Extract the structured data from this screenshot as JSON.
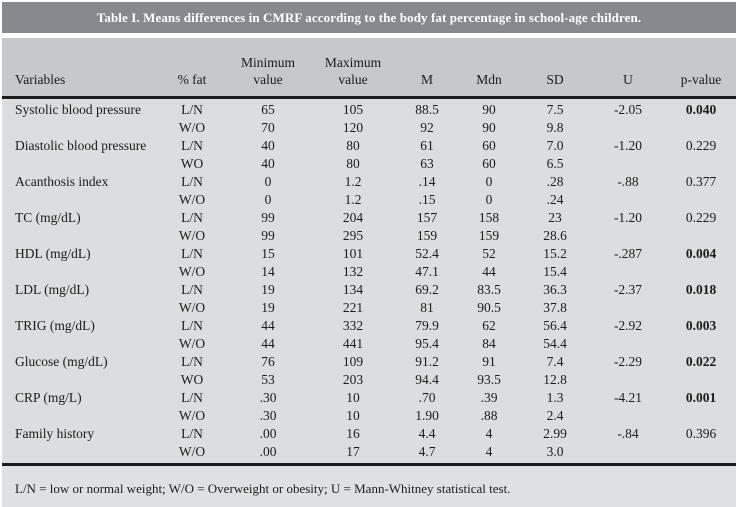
{
  "colors": {
    "title_bar_bg": "#87898C",
    "title_text": "#FFFFFF",
    "header_bg": "#C7C8CA",
    "body_bg": "#DCDDDE",
    "footnote_bg": "#DFE0E1",
    "rule": "#1C1C1C",
    "text": "#1B1B1B"
  },
  "table": {
    "title": "Table I. Means differences in CMRF according to the body fat percentage in school-age children.",
    "columns": [
      {
        "key": "variable",
        "label": "Variables"
      },
      {
        "key": "fat",
        "label": "% fat"
      },
      {
        "key": "min",
        "label": "Minimum\nvalue"
      },
      {
        "key": "max",
        "label": "Maximum\nvalue"
      },
      {
        "key": "m",
        "label": "M"
      },
      {
        "key": "mdn",
        "label": "Mdn"
      },
      {
        "key": "sd",
        "label": "SD"
      },
      {
        "key": "u",
        "label": "U"
      },
      {
        "key": "p",
        "label": "p-value"
      }
    ],
    "rows": [
      {
        "variable": "Systolic blood pressure",
        "fat": "L/N",
        "min": "65",
        "max": "105",
        "m": "88.5",
        "mdn": "90",
        "sd": "7.5",
        "u": "-2.05",
        "p": "0.040",
        "p_bold": true
      },
      {
        "variable": "",
        "fat": "W/O",
        "min": "70",
        "max": "120",
        "m": "92",
        "mdn": "90",
        "sd": "9.8",
        "u": "",
        "p": "",
        "p_bold": false
      },
      {
        "variable": "Diastolic blood pressure",
        "fat": "L/N",
        "min": "40",
        "max": "80",
        "m": "61",
        "mdn": "60",
        "sd": "7.0",
        "u": "-1.20",
        "p": "0.229",
        "p_bold": false
      },
      {
        "variable": "",
        "fat": "WO",
        "min": "40",
        "max": "80",
        "m": "63",
        "mdn": "60",
        "sd": "6.5",
        "u": "",
        "p": "",
        "p_bold": false
      },
      {
        "variable": "Acanthosis index",
        "fat": "L/N",
        "min": "0",
        "max": "1.2",
        "m": ".14",
        "mdn": "0",
        "sd": ".28",
        "u": "-.88",
        "p": "0.377",
        "p_bold": false
      },
      {
        "variable": "",
        "fat": "W/O",
        "min": "0",
        "max": "1.2",
        "m": ".15",
        "mdn": "0",
        "sd": ".24",
        "u": "",
        "p": "",
        "p_bold": false
      },
      {
        "variable": "TC (mg/dL)",
        "fat": "L/N",
        "min": "99",
        "max": "204",
        "m": "157",
        "mdn": "158",
        "sd": "23",
        "u": "-1.20",
        "p": "0.229",
        "p_bold": false
      },
      {
        "variable": "",
        "fat": "W/O",
        "min": "99",
        "max": "295",
        "m": "159",
        "mdn": "159",
        "sd": "28.6",
        "u": "",
        "p": "",
        "p_bold": false
      },
      {
        "variable": "HDL (mg/dL)",
        "fat": "L/N",
        "min": "15",
        "max": "101",
        "m": "52.4",
        "mdn": "52",
        "sd": "15.2",
        "u": "-.287",
        "p": "0.004",
        "p_bold": true
      },
      {
        "variable": "",
        "fat": "W/O",
        "min": "14",
        "max": "132",
        "m": "47.1",
        "mdn": "44",
        "sd": "15.4",
        "u": "",
        "p": "",
        "p_bold": false
      },
      {
        "variable": "LDL (mg/dL)",
        "fat": "L/N",
        "min": "19",
        "max": "134",
        "m": "69.2",
        "mdn": "83.5",
        "sd": "36.3",
        "u": "-2.37",
        "p": "0.018",
        "p_bold": true
      },
      {
        "variable": "",
        "fat": "W/O",
        "min": "19",
        "max": "221",
        "m": "81",
        "mdn": "90.5",
        "sd": "37.8",
        "u": "",
        "p": "",
        "p_bold": false
      },
      {
        "variable": "TRIG (mg/dL)",
        "fat": "L/N",
        "min": "44",
        "max": "332",
        "m": "79.9",
        "mdn": "62",
        "sd": "56.4",
        "u": "-2.92",
        "p": "0.003",
        "p_bold": true
      },
      {
        "variable": "",
        "fat": "W/O",
        "min": "44",
        "max": "441",
        "m": "95.4",
        "mdn": "84",
        "sd": "54.4",
        "u": "",
        "p": "",
        "p_bold": false
      },
      {
        "variable": "Glucose (mg/dL)",
        "fat": "L/N",
        "min": "76",
        "max": "109",
        "m": "91.2",
        "mdn": "91",
        "sd": "7.4",
        "u": "-2.29",
        "p": "0.022",
        "p_bold": true
      },
      {
        "variable": "",
        "fat": "WO",
        "min": "53",
        "max": "203",
        "m": "94.4",
        "mdn": "93.5",
        "sd": "12.8",
        "u": "",
        "p": "",
        "p_bold": false
      },
      {
        "variable": "CRP (mg/L)",
        "fat": "L/N",
        "min": ".30",
        "max": "10",
        "m": ".70",
        "mdn": ".39",
        "sd": "1.3",
        "u": "-4.21",
        "p": "0.001",
        "p_bold": true
      },
      {
        "variable": "",
        "fat": "W/O",
        "min": ".30",
        "max": "10",
        "m": "1.90",
        "mdn": ".88",
        "sd": "2.4",
        "u": "",
        "p": "",
        "p_bold": false
      },
      {
        "variable": "Family history",
        "fat": "L/N",
        "min": ".00",
        "max": "16",
        "m": "4.4",
        "mdn": "4",
        "sd": "2.99",
        "u": "-.84",
        "p": "0.396",
        "p_bold": false
      },
      {
        "variable": "",
        "fat": "W/O",
        "min": ".00",
        "max": "17",
        "m": "4.7",
        "mdn": "4",
        "sd": "3.0",
        "u": "",
        "p": "",
        "p_bold": false
      }
    ],
    "footnote": "L/N = low or normal weight; W/O = Overweight or obesity; U = Mann-Whitney statistical test."
  }
}
